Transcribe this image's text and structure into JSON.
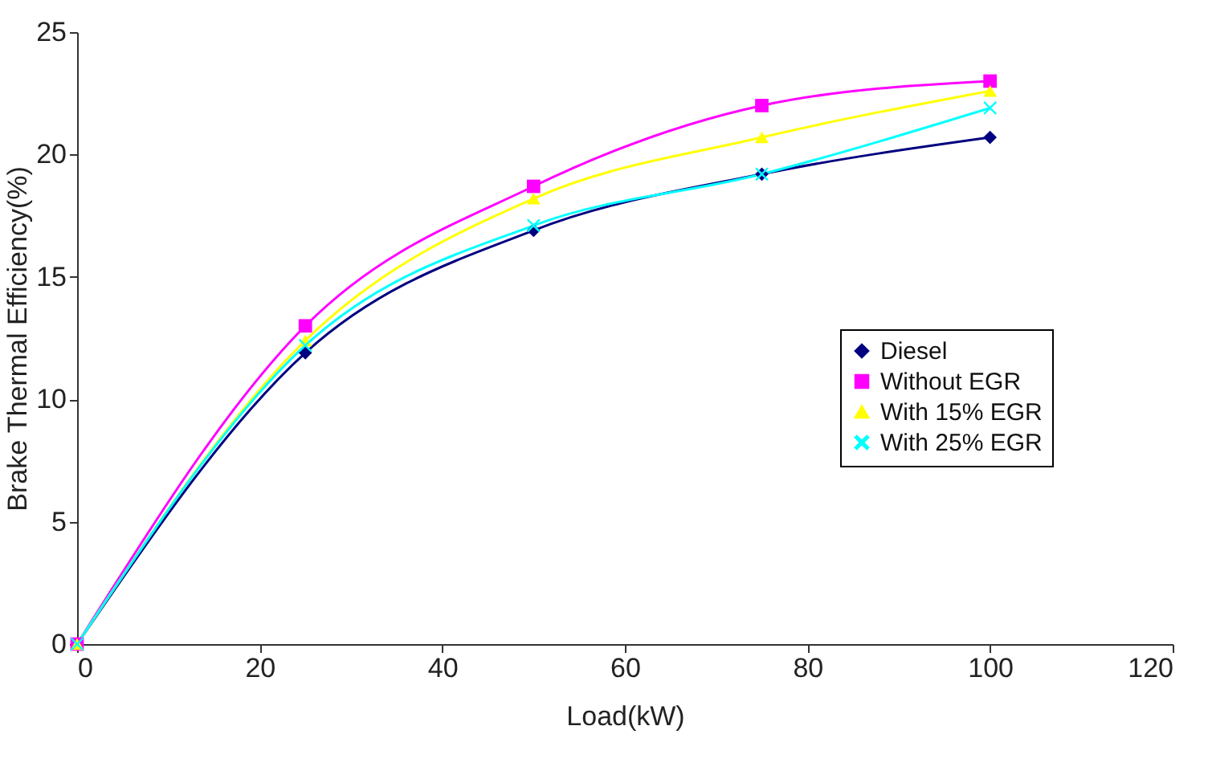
{
  "chart_data": {
    "type": "line",
    "xlabel": "Load(kW)",
    "ylabel": "Brake Thermal Efficiency(%)",
    "x": [
      0,
      25,
      50,
      75,
      100
    ],
    "series": [
      {
        "name": "Diesel",
        "color": "#000080",
        "marker": "diamond",
        "values": [
          0,
          11.9,
          16.9,
          19.2,
          20.7
        ]
      },
      {
        "name": "Without EGR",
        "color": "#ff00ff",
        "marker": "square",
        "values": [
          0,
          13.0,
          18.7,
          22.0,
          23.0
        ]
      },
      {
        "name": "With 15% EGR",
        "color": "#ffff00",
        "marker": "triangle",
        "values": [
          0,
          12.4,
          18.2,
          20.7,
          22.6
        ]
      },
      {
        "name": "With 25% EGR",
        "color": "#00ffff",
        "marker": "cross",
        "values": [
          0,
          12.2,
          17.1,
          19.2,
          21.9
        ]
      }
    ],
    "xlim": [
      0,
      120
    ],
    "xticks": [
      0,
      20,
      40,
      60,
      80,
      100,
      120
    ],
    "ylim": [
      0,
      25
    ],
    "yticks": [
      0,
      5,
      10,
      15,
      20,
      25
    ],
    "legend": "right"
  }
}
